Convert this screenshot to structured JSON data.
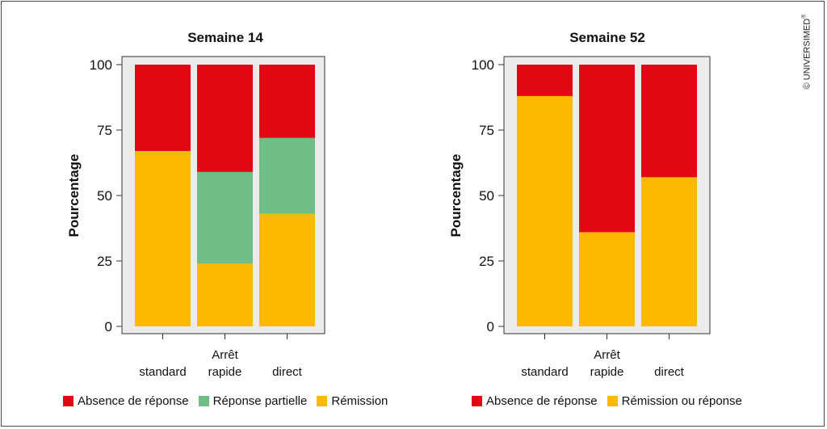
{
  "colors": {
    "absence": "#e30613",
    "partial": "#6fbe88",
    "remission": "#fbb900",
    "panel_bg": "#ebebeb"
  },
  "copyright": {
    "text": "© UNIVERSIMED",
    "mark": "®"
  },
  "chart_data": [
    {
      "type": "bar",
      "stacked": true,
      "title": "Semaine 14",
      "ylabel": "Pourcentage",
      "xlabel": "",
      "ylim": [
        0,
        100
      ],
      "yticks": [
        0,
        25,
        50,
        75,
        100
      ],
      "grid": false,
      "legend_position": "bottom",
      "categories": [
        [
          "standard"
        ],
        [
          "Arrêt",
          "rapide"
        ],
        [
          "direct"
        ]
      ],
      "series": [
        {
          "name": "Rémission",
          "color": "#fbb900",
          "values": [
            67,
            24,
            43
          ]
        },
        {
          "name": "Réponse partielle",
          "color": "#6fbe88",
          "values": [
            0,
            35,
            29
          ]
        },
        {
          "name": "Absence de réponse",
          "color": "#e30613",
          "values": [
            33,
            41,
            28
          ]
        }
      ],
      "legend": [
        "Absence de réponse",
        "Réponse partielle",
        "Rémission"
      ]
    },
    {
      "type": "bar",
      "stacked": true,
      "title": "Semaine 52",
      "ylabel": "Pourcentage",
      "xlabel": "",
      "ylim": [
        0,
        100
      ],
      "yticks": [
        0,
        25,
        50,
        75,
        100
      ],
      "grid": false,
      "legend_position": "bottom",
      "categories": [
        [
          "standard"
        ],
        [
          "Arrêt",
          "rapide"
        ],
        [
          "direct"
        ]
      ],
      "series": [
        {
          "name": "Rémission ou réponse",
          "color": "#fbb900",
          "values": [
            88,
            36,
            57
          ]
        },
        {
          "name": "Absence de réponse",
          "color": "#e30613",
          "values": [
            12,
            64,
            43
          ]
        }
      ],
      "legend": [
        "Absence de réponse",
        "Rémission ou réponse"
      ]
    }
  ]
}
